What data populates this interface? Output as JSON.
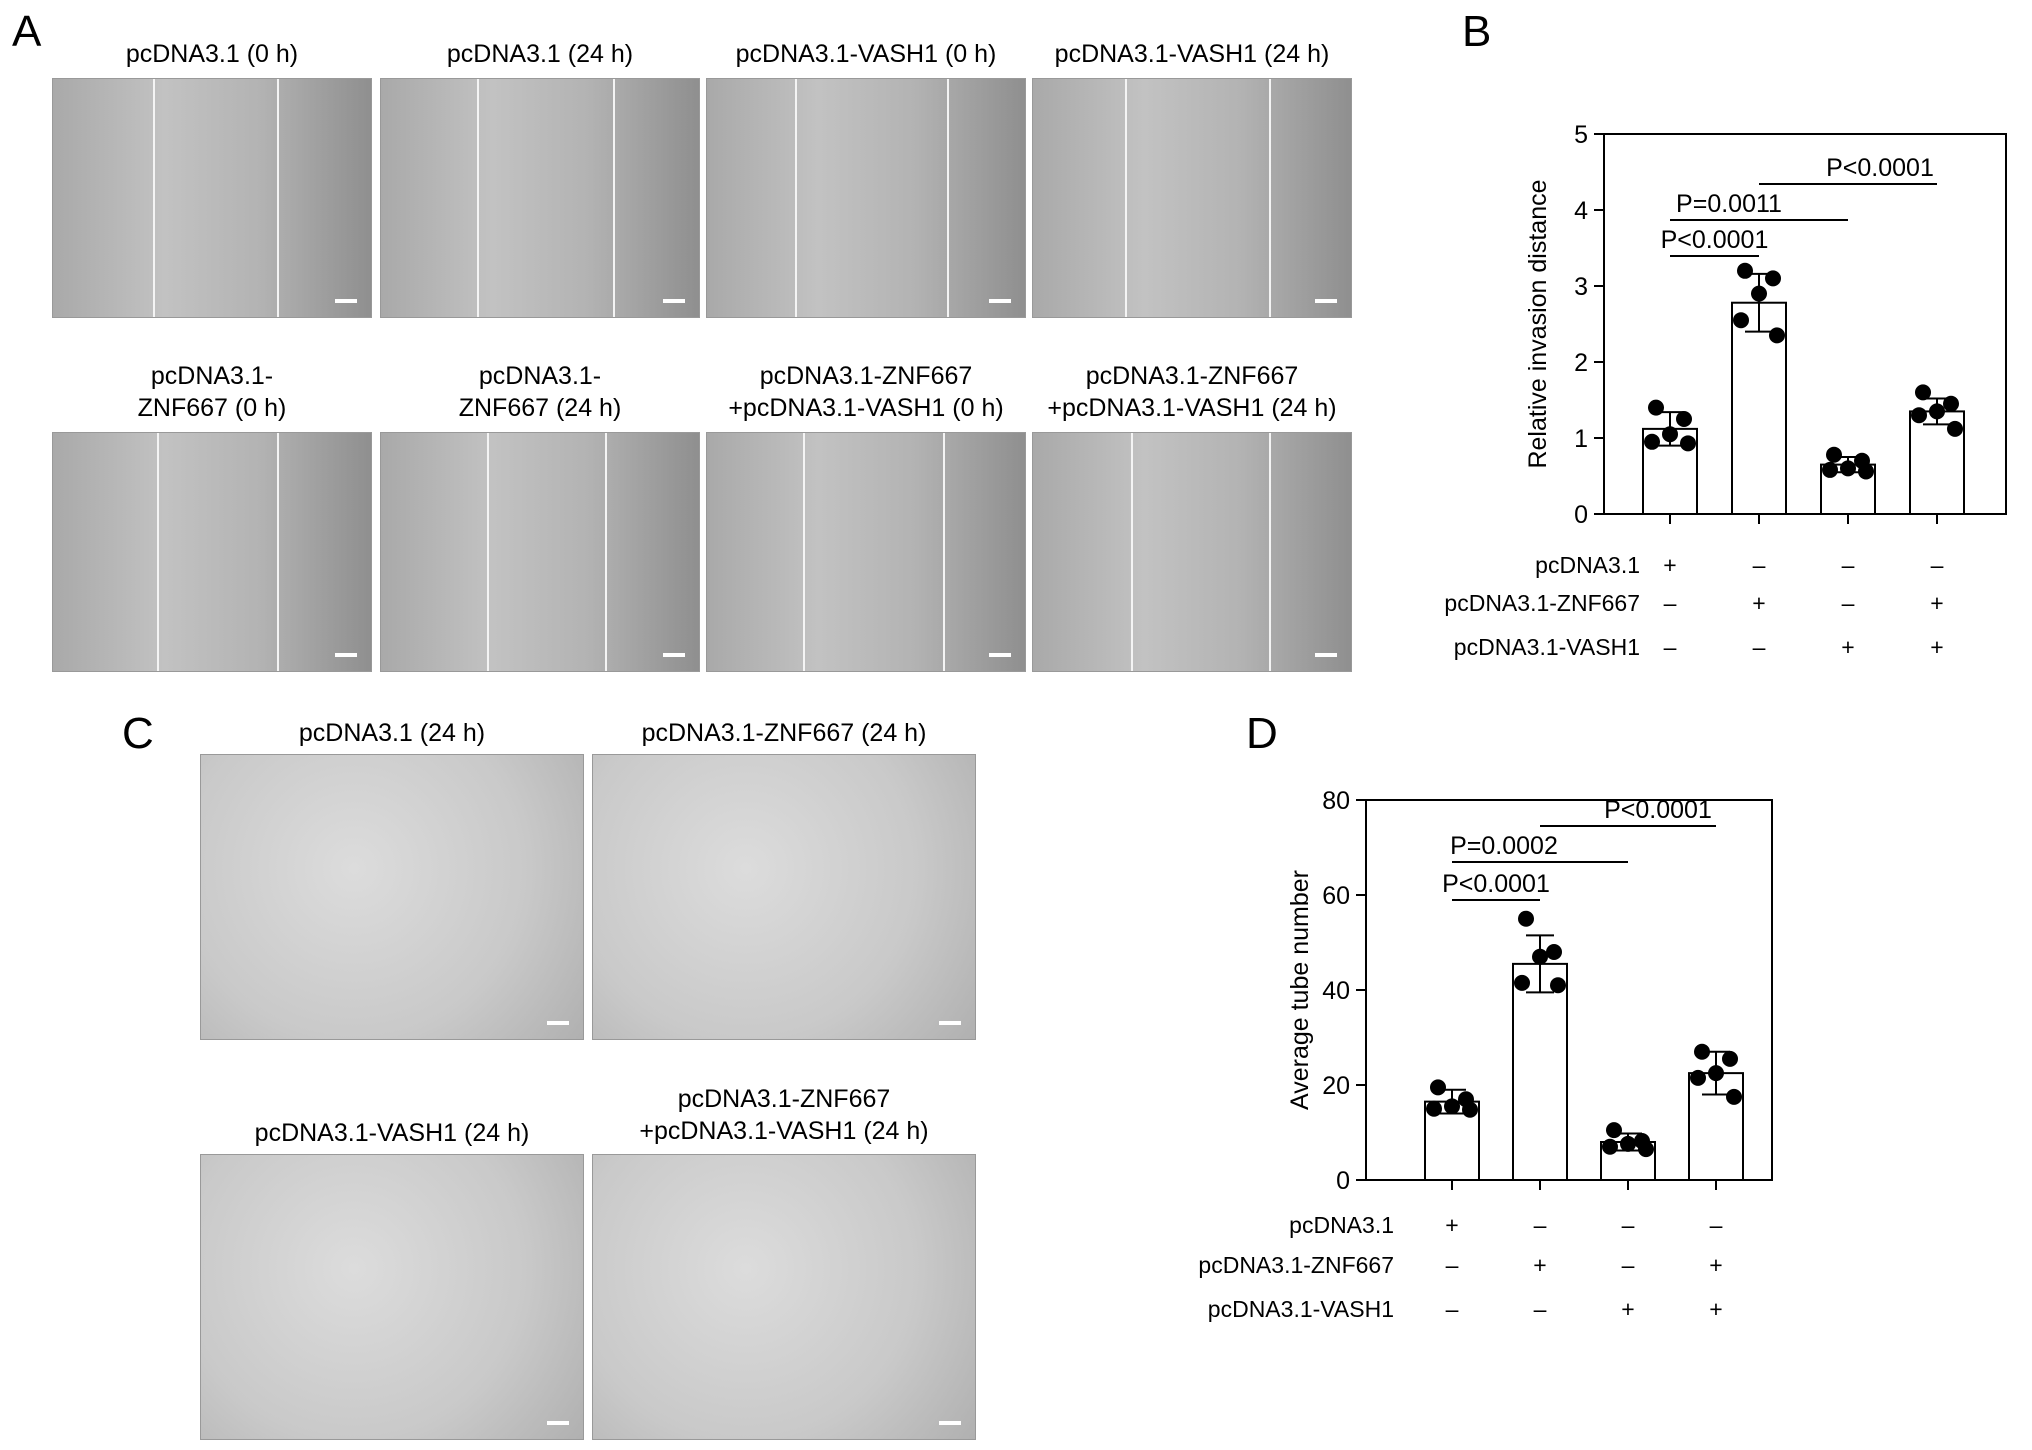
{
  "panels": {
    "A": "A",
    "B": "B",
    "C": "C",
    "D": "D"
  },
  "panel_a": {
    "row1": [
      "pcDNA3.1 (0 h)",
      "pcDNA3.1 (24 h)",
      "pcDNA3.1-VASH1 (0 h)",
      "pcDNA3.1-VASH1 (24 h)"
    ],
    "row2": [
      [
        "pcDNA3.1-",
        "ZNF667 (0 h)"
      ],
      [
        "pcDNA3.1-",
        "ZNF667 (24 h)"
      ],
      [
        "pcDNA3.1-ZNF667",
        "+pcDNA3.1-VASH1 (0 h)"
      ],
      [
        "pcDNA3.1-ZNF667",
        "+pcDNA3.1-VASH1 (24 h)"
      ]
    ]
  },
  "panel_c": {
    "titles": [
      "pcDNA3.1 (24 h)",
      "pcDNA3.1-ZNF667 (24 h)",
      "pcDNA3.1-VASH1 (24 h)"
    ],
    "title4": [
      "pcDNA3.1-ZNF667",
      "+pcDNA3.1-VASH1 (24 h)"
    ]
  },
  "conditions": {
    "rows": [
      "pcDNA3.1",
      "pcDNA3.1-ZNF667",
      "pcDNA3.1-VASH1"
    ],
    "signs": [
      [
        "+",
        "–",
        "–",
        "–"
      ],
      [
        "–",
        "+",
        "–",
        "+"
      ],
      [
        "–",
        "–",
        "+",
        "+"
      ]
    ]
  },
  "chart_data": [
    {
      "type": "bar",
      "panel": "B",
      "ylabel": "Relative invasion distance",
      "ylim": [
        0,
        5
      ],
      "yticks": [
        0,
        1,
        2,
        3,
        4,
        5
      ],
      "categories": [
        "pcDNA3.1",
        "pcDNA3.1-ZNF667",
        "pcDNA3.1-VASH1",
        "pcDNA3.1-ZNF667+pcDNA3.1-VASH1"
      ],
      "values": [
        1.12,
        2.78,
        0.65,
        1.35
      ],
      "sd": [
        0.22,
        0.38,
        0.1,
        0.17
      ],
      "points": [
        [
          1.4,
          1.25,
          1.05,
          0.95,
          0.93
        ],
        [
          3.2,
          3.1,
          2.9,
          2.55,
          2.35
        ],
        [
          0.78,
          0.7,
          0.6,
          0.58,
          0.56
        ],
        [
          1.6,
          1.45,
          1.35,
          1.3,
          1.12
        ]
      ],
      "comparisons": [
        {
          "from": 0,
          "to": 1,
          "label": "P<0.0001"
        },
        {
          "from": 0,
          "to": 2,
          "label": "P=0.0011"
        },
        {
          "from": 1,
          "to": 3,
          "label": "P<0.0001"
        }
      ]
    },
    {
      "type": "bar",
      "panel": "D",
      "ylabel": "Average tube number",
      "ylim": [
        0,
        80
      ],
      "yticks": [
        0,
        20,
        40,
        60,
        80
      ],
      "categories": [
        "pcDNA3.1",
        "pcDNA3.1-ZNF667",
        "pcDNA3.1-VASH1",
        "pcDNA3.1-ZNF667+pcDNA3.1-VASH1"
      ],
      "values": [
        16.5,
        45.5,
        8,
        22.5
      ],
      "sd": [
        2.5,
        6,
        1.8,
        4.5
      ],
      "points": [
        [
          19.5,
          17,
          15.5,
          15,
          14.8
        ],
        [
          55,
          48,
          47,
          41.5,
          41
        ],
        [
          10.5,
          8.2,
          7.6,
          7,
          6.5
        ],
        [
          27,
          25.5,
          22.5,
          21.5,
          17.5
        ]
      ],
      "comparisons": [
        {
          "from": 0,
          "to": 1,
          "label": "P<0.0001"
        },
        {
          "from": 0,
          "to": 2,
          "label": "P=0.0002"
        },
        {
          "from": 1,
          "to": 3,
          "label": "P<0.0001"
        }
      ]
    }
  ]
}
